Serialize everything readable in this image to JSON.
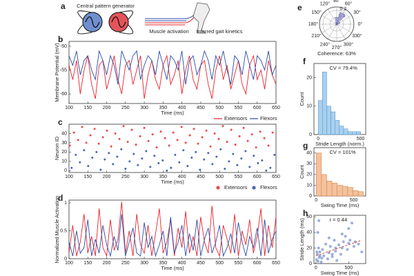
{
  "panel_a": {
    "letter": "a",
    "labels": [
      "Central pattern generator",
      "Muscle activation",
      "Inferred gait kinetics"
    ]
  },
  "chart_data": [
    {
      "type": "line",
      "letter": "b",
      "xlabel": "Time (ms)",
      "ylabel": "Membrane Potential (mV)",
      "legend": "below-right",
      "x": [
        100,
        110,
        120,
        130,
        140,
        150,
        160,
        170,
        180,
        190,
        200,
        210,
        220,
        230,
        240,
        250,
        260,
        270,
        280,
        290,
        300,
        310,
        320,
        330,
        340,
        350,
        360,
        370,
        380,
        390,
        400,
        410,
        420,
        430,
        440,
        450,
        460,
        470,
        480,
        490,
        500,
        510,
        520,
        530,
        540,
        550,
        560,
        570,
        580,
        590,
        600,
        610,
        620,
        630,
        640,
        650
      ],
      "series": [
        {
          "name": "Extensors",
          "color": "#e8212a",
          "values": [
            -54,
            -57,
            -53,
            -60,
            -55,
            -52,
            -58,
            -61,
            -54,
            -53,
            -59,
            -56,
            -52,
            -57,
            -60,
            -54,
            -53,
            -58,
            -55,
            -52,
            -61,
            -56,
            -53,
            -57,
            -59,
            -54,
            -52,
            -58,
            -56,
            -53,
            -60,
            -55,
            -52,
            -57,
            -59,
            -54,
            -53,
            -58,
            -61,
            -55,
            -52,
            -57,
            -54,
            -59,
            -56,
            -53,
            -58,
            -60,
            -54,
            -52,
            -57,
            -55,
            -59,
            -53,
            -56,
            -58
          ]
        },
        {
          "name": "Flexors",
          "color": "#2a4aa8",
          "values": [
            -52,
            -54,
            -51,
            -56,
            -53,
            -52,
            -55,
            -57,
            -51,
            -53,
            -56,
            -52,
            -54,
            -58,
            -51,
            -53,
            -55,
            -52,
            -51,
            -57,
            -54,
            -52,
            -53,
            -56,
            -51,
            -54,
            -57,
            -52,
            -53,
            -55,
            -51,
            -58,
            -53,
            -52,
            -56,
            -54,
            -51,
            -53,
            -57,
            -52,
            -54,
            -51,
            -55,
            -58,
            -52,
            -53,
            -56,
            -51,
            -54,
            -57,
            -52,
            -53,
            -55,
            -51,
            -56,
            -54
          ]
        }
      ],
      "xlim": [
        100,
        650
      ],
      "xticks": [
        100,
        150,
        200,
        250,
        300,
        350,
        400,
        450,
        500,
        550,
        600,
        650
      ],
      "ylim": [
        -62,
        -49
      ],
      "yticks": [
        -60,
        -55,
        -50
      ]
    },
    {
      "type": "scatter",
      "letter": "c",
      "xlabel": "Time (ms)",
      "ylabel": "Neuron ID",
      "legend": "below-right",
      "series": [
        {
          "name": "Extensors",
          "color": "#e84a4f",
          "x": [
            102,
            113,
            124,
            135,
            146,
            157,
            168,
            179,
            190,
            201,
            212,
            223,
            234,
            245,
            256,
            267,
            278,
            289,
            300,
            311,
            322,
            333,
            344,
            355,
            366,
            377,
            388,
            399,
            410,
            421,
            432,
            443,
            454,
            465,
            476,
            487,
            498,
            509,
            520,
            531,
            542,
            553,
            564,
            575,
            586,
            597,
            608,
            619,
            630,
            641
          ],
          "values": [
            27,
            41,
            33,
            47,
            30,
            38,
            45,
            29,
            36,
            43,
            26,
            40,
            34,
            48,
            31,
            44,
            28,
            37,
            46,
            32,
            39,
            25,
            42,
            35,
            27,
            41,
            33,
            47,
            30,
            38,
            45,
            29,
            36,
            43,
            26,
            40,
            34,
            48,
            31,
            44,
            28,
            37,
            46,
            32,
            39,
            25,
            42,
            35,
            27,
            41
          ]
        },
        {
          "name": "Flexors",
          "color": "#4a66b0",
          "x": [
            107,
            118,
            129,
            140,
            151,
            162,
            173,
            184,
            195,
            206,
            217,
            228,
            239,
            250,
            261,
            272,
            283,
            294,
            305,
            316,
            327,
            338,
            349,
            360,
            371,
            382,
            393,
            404,
            415,
            426,
            437,
            448,
            459,
            470,
            481,
            492,
            503,
            514,
            525,
            536,
            547,
            558,
            569,
            580,
            591,
            602,
            613,
            624,
            635,
            646
          ],
          "values": [
            3,
            17,
            9,
            22,
            5,
            14,
            20,
            1,
            12,
            19,
            7,
            15,
            23,
            2,
            10,
            18,
            6,
            13,
            21,
            4,
            16,
            8,
            11,
            0,
            3,
            17,
            9,
            22,
            5,
            14,
            20,
            1,
            12,
            19,
            7,
            15,
            23,
            2,
            10,
            18,
            6,
            13,
            21,
            4,
            16,
            8,
            11,
            0,
            3,
            17
          ]
        }
      ],
      "xlim": [
        100,
        650
      ],
      "xticks": [
        100,
        150,
        200,
        250,
        300,
        350,
        400,
        450,
        500,
        550,
        600,
        650
      ],
      "ylim": [
        -2,
        50
      ],
      "yticks": [
        0,
        10,
        20,
        30,
        40
      ]
    },
    {
      "type": "line",
      "letter": "d",
      "xlabel": "Time (ms)",
      "ylabel": "Normalized Muscle Activation",
      "x": [
        100,
        110,
        120,
        130,
        140,
        150,
        160,
        170,
        180,
        190,
        200,
        210,
        220,
        230,
        240,
        250,
        260,
        270,
        280,
        290,
        300,
        310,
        320,
        330,
        340,
        350,
        360,
        370,
        380,
        390,
        400,
        410,
        420,
        430,
        440,
        450,
        460,
        470,
        480,
        490,
        500,
        510,
        520,
        530,
        540,
        550,
        560,
        570,
        580,
        590,
        600,
        610,
        620,
        630,
        640,
        650
      ],
      "series": [
        {
          "name": "Extensors",
          "color": "#e8212a",
          "values": [
            0.1,
            0.6,
            0.05,
            0.3,
            0.8,
            0.1,
            0.4,
            0.05,
            0.9,
            0.2,
            0.05,
            0.7,
            0.15,
            0.35,
            1.02,
            0.1,
            0.5,
            0.05,
            0.8,
            0.25,
            0.1,
            0.6,
            0.05,
            0.45,
            0.9,
            0.1,
            0.3,
            0.7,
            0.05,
            0.55,
            0.2,
            0.85,
            0.1,
            0.4,
            0.05,
            0.75,
            0.3,
            0.1,
            0.95,
            0.2,
            0.05,
            0.6,
            0.35,
            0.1,
            0.8,
            0.05,
            0.5,
            0.25,
            0.7,
            0.1,
            0.4,
            0.9,
            0.05,
            0.6,
            0.2,
            0.75
          ]
        },
        {
          "name": "Flexors",
          "color": "#2a4aa8",
          "values": [
            0.3,
            0.05,
            0.5,
            0.1,
            0.2,
            0.7,
            0.05,
            0.35,
            0.1,
            0.6,
            0.25,
            0.05,
            0.4,
            0.15,
            0.8,
            0.05,
            0.3,
            0.55,
            0.1,
            0.05,
            0.65,
            0.2,
            0.4,
            0.05,
            0.25,
            0.5,
            0.05,
            0.75,
            0.1,
            0.3,
            0.6,
            0.05,
            0.45,
            0.15,
            0.7,
            0.05,
            0.35,
            0.55,
            0.1,
            0.3,
            0.6,
            0.05,
            0.2,
            0.45,
            0.1,
            0.65,
            0.3,
            0.05,
            0.4,
            0.2,
            0.55,
            0.05,
            0.7,
            0.1,
            0.35,
            0.5
          ]
        }
      ],
      "xlim": [
        100,
        650
      ],
      "xticks": [
        100,
        150,
        200,
        250,
        300,
        350,
        400,
        450,
        500,
        550,
        600,
        650
      ],
      "ylim": [
        0,
        1.05
      ],
      "yticks": [
        0,
        0.5,
        1
      ]
    },
    {
      "type": "polar",
      "letter": "e",
      "annotation": "Coherence: 63%",
      "color": "#8c8cd0",
      "theta": [
        0,
        30,
        60,
        90,
        120,
        150,
        180,
        210,
        240,
        270,
        300,
        330
      ],
      "width": 30,
      "values": [
        0.02,
        0.05,
        0.18,
        0.1,
        0.03,
        0.01,
        0.01,
        0.02,
        0.01,
        0.01,
        0.01,
        0.01
      ],
      "rlim": [
        0,
        0.25
      ],
      "rticks": [
        0.1,
        0.2
      ],
      "thetaticks": [
        {
          "value": 0,
          "label": "0°"
        },
        {
          "value": 30,
          "label": "30°"
        },
        {
          "value": 60,
          "label": "60°"
        },
        {
          "value": 90,
          "label": "90°"
        },
        {
          "value": 120,
          "label": "120°"
        },
        {
          "value": 150,
          "label": "150°"
        },
        {
          "value": 180,
          "label": "180°"
        },
        {
          "value": 210,
          "label": "210°"
        },
        {
          "value": 240,
          "label": "240°"
        },
        {
          "value": 270,
          "label": "270°"
        },
        {
          "value": 300,
          "label": "300°"
        },
        {
          "value": 330,
          "label": "330°"
        }
      ]
    },
    {
      "type": "histogram",
      "letter": "f",
      "annotation": "CV = 79.4%",
      "xlabel": "Stride Length (norm.)",
      "ylabel": "Count",
      "color": "#a9d0ee",
      "edge": "#4a90c8",
      "bins": [
        0,
        50,
        100,
        150,
        200,
        250,
        300,
        350,
        400,
        450,
        500
      ],
      "values": [
        12,
        22,
        10,
        8,
        5,
        3,
        2,
        1,
        1,
        1
      ],
      "xlim": [
        -50,
        560
      ],
      "xticks": [
        0,
        500
      ],
      "ylim": [
        0,
        25
      ],
      "yticks": [
        0,
        10,
        20
      ]
    },
    {
      "type": "histogram",
      "letter": "g",
      "annotation": "CV = 101%",
      "xlabel": "Swing Time (ms)",
      "ylabel": "Count",
      "color": "#f4c29c",
      "edge": "#d07a40",
      "bins": [
        0,
        70,
        140,
        210,
        280,
        350,
        420,
        490,
        560,
        630
      ],
      "values": [
        40,
        20,
        14,
        12,
        10,
        9,
        8,
        5,
        4
      ],
      "xlim": [
        -30,
        660
      ],
      "xticks": [
        0,
        500
      ],
      "ylim": [
        0,
        45
      ],
      "yticks": [
        0,
        10,
        20,
        30,
        40
      ]
    },
    {
      "type": "scatter",
      "letter": "h",
      "annotation": "r = 0.44",
      "xlabel": "Swing Time (ms)",
      "ylabel": "Stride Length (ms)",
      "color": "#8aa0d8",
      "x": [
        10,
        20,
        30,
        40,
        50,
        60,
        80,
        100,
        120,
        150,
        180,
        200,
        220,
        250,
        280,
        300,
        320,
        350,
        380,
        400,
        420,
        450,
        480,
        500,
        520,
        550,
        580,
        600,
        650,
        700,
        30,
        60,
        90,
        200,
        300,
        400,
        15,
        45,
        250,
        500
      ],
      "values": [
        5,
        12,
        3,
        20,
        8,
        15,
        2,
        18,
        10,
        25,
        6,
        14,
        22,
        9,
        30,
        16,
        4,
        24,
        12,
        20,
        28,
        35,
        18,
        26,
        30,
        52,
        22,
        28,
        25,
        15,
        40,
        10,
        7,
        33,
        20,
        38,
        15,
        55,
        12,
        45
      ],
      "trend_line": {
        "color": "#c0392b",
        "x": [
          0,
          700
        ],
        "values": [
          10,
          30
        ]
      },
      "xlim": [
        -30,
        760
      ],
      "xticks": [
        0,
        500
      ],
      "ylim": [
        0,
        62
      ],
      "yticks": [
        0,
        20,
        40,
        60
      ]
    }
  ]
}
